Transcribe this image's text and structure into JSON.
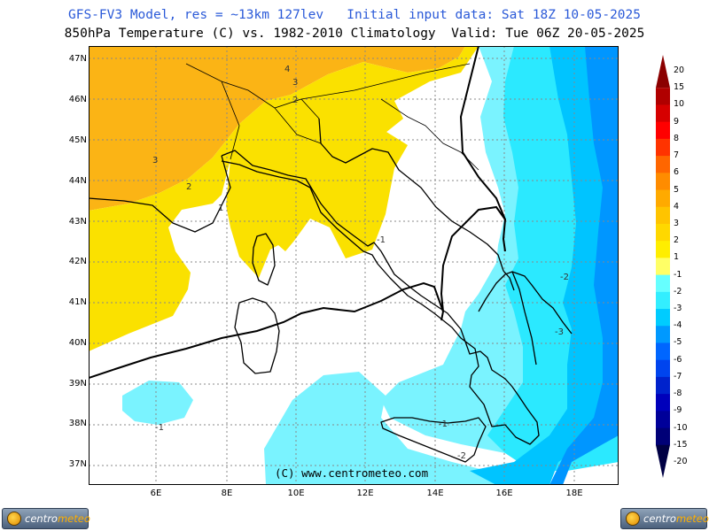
{
  "header": {
    "title_line1": "GFS-FV3 Model, res = ~13km 127lev   Initial input data: Sat 18Z 10-05-2025",
    "title_line2": "850hPa Temperature (C) vs. 1982-2010 Climatology  Valid: Tue 06Z 20-05-2025"
  },
  "map": {
    "lat_labels": [
      "47N",
      "46N",
      "45N",
      "44N",
      "43N",
      "42N",
      "41N",
      "40N",
      "39N",
      "38N",
      "37N"
    ],
    "lon_labels": [
      "6E",
      "8E",
      "10E",
      "12E",
      "14E",
      "16E",
      "18E"
    ],
    "copyright": "(C) www.centrometeo.com",
    "contour_labels": [
      "4",
      "3",
      "2",
      "3",
      "2",
      "1",
      "-1",
      "-2",
      "-3",
      "-1",
      "-1",
      "-2"
    ]
  },
  "legend": {
    "labels": [
      "20",
      "15",
      "10",
      "9",
      "8",
      "7",
      "6",
      "5",
      "4",
      "3",
      "2",
      "1",
      "-1",
      "-2",
      "-3",
      "-4",
      "-5",
      "-6",
      "-7",
      "-8",
      "-9",
      "-10",
      "-15",
      "-20"
    ],
    "colors": [
      "#8b0000",
      "#b00000",
      "#d60000",
      "#ff0000",
      "#ff3300",
      "#ff6600",
      "#ff8c00",
      "#ffaa00",
      "#ffc400",
      "#ffd800",
      "#ffee00",
      "#ffff66",
      "#66ffff",
      "#33eeff",
      "#00ccff",
      "#0099ff",
      "#0066ff",
      "#0044ee",
      "#0022cc",
      "#0000bb",
      "#000099",
      "#000077",
      "#000044"
    ]
  },
  "colors": {
    "anom_plus3": "#fbb415",
    "anom_plus1": "#fae100",
    "anom_minus1": "#7af3ff",
    "anom_minus2": "#2be9ff",
    "anom_minus3": "#00c4ff",
    "anom_minus4": "#0096ff",
    "title_blue": "#2b5ad8"
  },
  "logo": {
    "text_left": "centro",
    "text_right": "meteo"
  }
}
